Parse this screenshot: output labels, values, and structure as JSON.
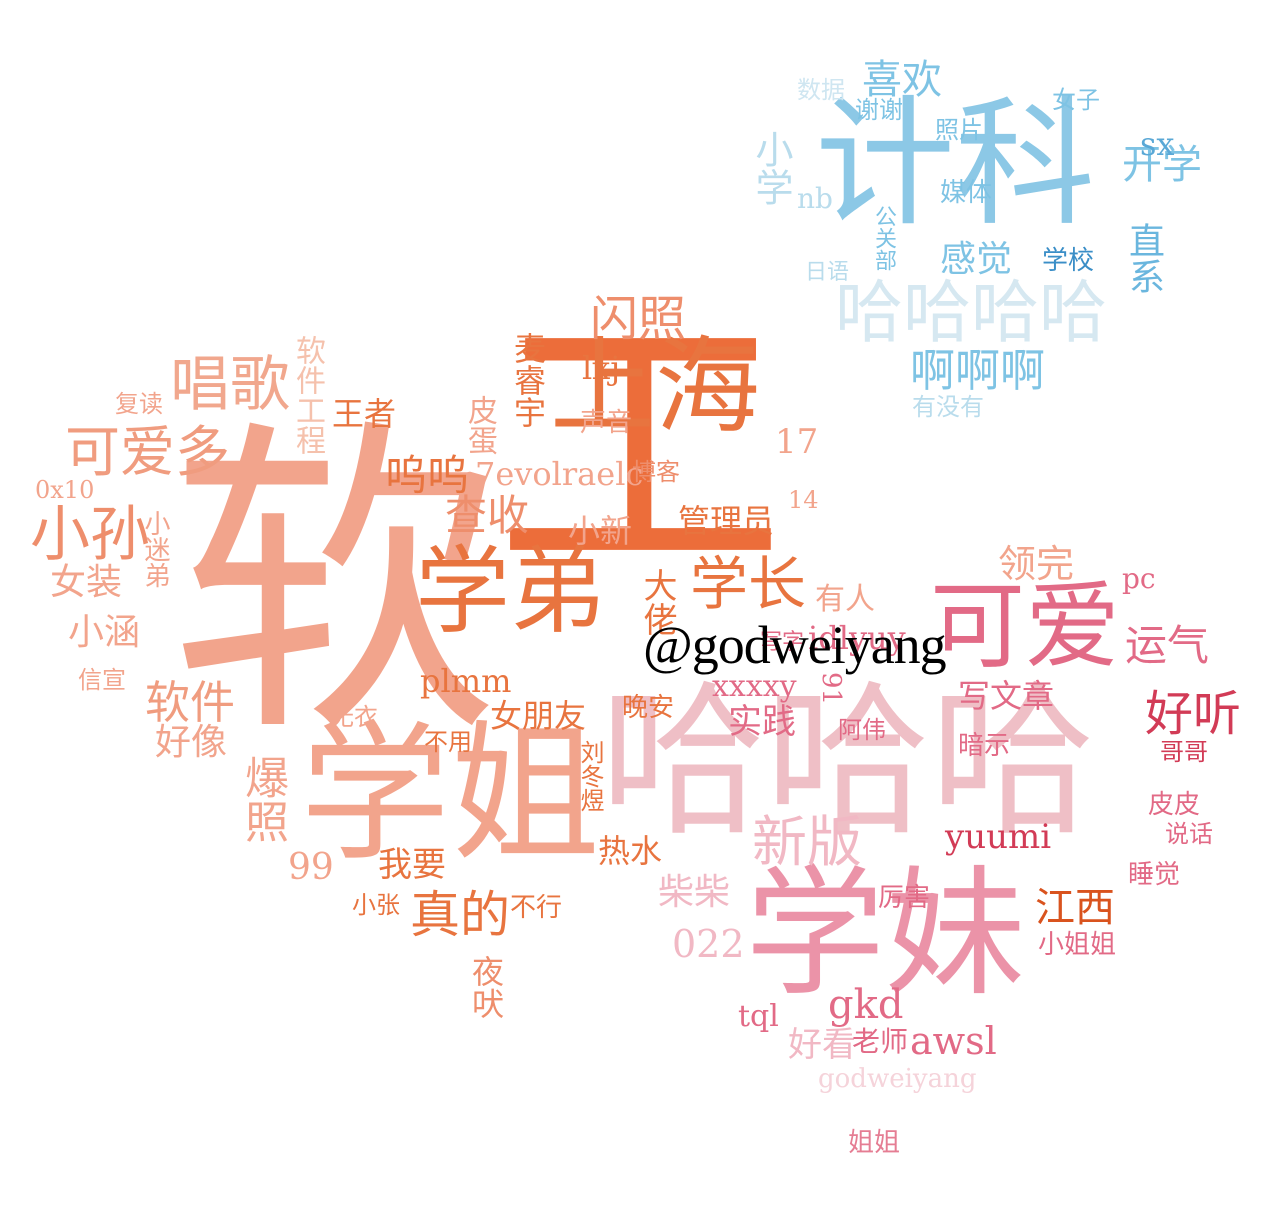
{
  "watermark": "@godweiyang",
  "colors": {
    "blue": "#7ec3e4",
    "blue_light": "#b9dcec",
    "blue_pale": "#cfe6f1",
    "peach": "#f1a78d",
    "orange": "#e8743f",
    "orange_dark": "#d9531e",
    "pink": "#e57d93",
    "pink_light": "#efbfc6",
    "crimson": "#d23b56"
  },
  "words": [
    {
      "text": "软",
      "color": "#f2a48c"
    },
    {
      "text": "工",
      "color": "#ec6d3a"
    },
    {
      "text": "学姐",
      "color": "#f2a48c"
    },
    {
      "text": "哈哈哈",
      "color": "#efbfc6"
    },
    {
      "text": "学妹",
      "color": "#eb93a8"
    },
    {
      "text": "计科",
      "color": "#8cc8e6"
    },
    {
      "text": "上海",
      "color": "#e8743f"
    },
    {
      "text": "学弟",
      "color": "#e8743f"
    },
    {
      "text": "可爱",
      "color": "#e26a86"
    },
    {
      "text": "哈哈哈哈",
      "color": "#d6e8f1"
    },
    {
      "text": "唱歌",
      "color": "#f1a78d"
    },
    {
      "text": "可爱多",
      "color": "#f09c7f"
    },
    {
      "text": "小孙",
      "color": "#ee8e6c"
    },
    {
      "text": "学长",
      "color": "#e8743f"
    },
    {
      "text": "闪照",
      "color": "#ee8e6c"
    },
    {
      "text": "查收",
      "color": "#ee8e6c"
    },
    {
      "text": "呜呜",
      "color": "#e8743f"
    },
    {
      "text": "软件",
      "color": "#f09c7f"
    },
    {
      "text": "新版",
      "color": "#f1b8c4"
    },
    {
      "text": "真的",
      "color": "#e8743f"
    },
    {
      "text": "好听",
      "color": "#d23b56"
    },
    {
      "text": "运气",
      "color": "#e26a86"
    },
    {
      "text": "江西",
      "color": "#d9531e"
    },
    {
      "text": "领完",
      "color": "#f2a48c"
    },
    {
      "text": "喜欢",
      "color": "#7ec3e4"
    },
    {
      "text": "啊啊啊",
      "color": "#7ec3e4"
    },
    {
      "text": "开学",
      "color": "#7ec3e4"
    },
    {
      "text": "感觉",
      "color": "#7ec3e4"
    },
    {
      "text": "小学",
      "color": "#b9dcec"
    },
    {
      "text": "直系",
      "color": "#6ab6de"
    },
    {
      "text": "sx",
      "color": "#5aa8d6"
    },
    {
      "text": "nb",
      "color": "#b9dcec"
    },
    {
      "text": "数据",
      "color": "#cfe6f1"
    },
    {
      "text": "谢谢",
      "color": "#7ec3e4"
    },
    {
      "text": "照片",
      "color": "#7ec3e4"
    },
    {
      "text": "女子",
      "color": "#7ec3e4"
    },
    {
      "text": "媒体",
      "color": "#7ec3e4"
    },
    {
      "text": "公关部",
      "color": "#7ec3e4"
    },
    {
      "text": "日语",
      "color": "#b9dcec"
    },
    {
      "text": "学校",
      "color": "#3a8ec7"
    },
    {
      "text": "有没有",
      "color": "#b9dcec"
    },
    {
      "text": "软件工程",
      "color": "#f5c1ac"
    },
    {
      "text": "复读",
      "color": "#f2a48c"
    },
    {
      "text": "王者",
      "color": "#e8743f"
    },
    {
      "text": "皮蛋",
      "color": "#f2a48c"
    },
    {
      "text": "麦睿宇",
      "color": "#e8743f"
    },
    {
      "text": "lxj",
      "color": "#e8743f"
    },
    {
      "text": "声音",
      "color": "#f2a48c"
    },
    {
      "text": "17",
      "color": "#f2a48c"
    },
    {
      "text": "0x10",
      "color": "#f2a48c"
    },
    {
      "text": "7evolraelc",
      "color": "#f2a48c"
    },
    {
      "text": "博客",
      "color": "#ee8e6c"
    },
    {
      "text": "14",
      "color": "#f2a48c"
    },
    {
      "text": "管理员",
      "color": "#e8743f"
    },
    {
      "text": "小迷弟",
      "color": "#f2a48c"
    },
    {
      "text": "女装",
      "color": "#f2a48c"
    },
    {
      "text": "小新",
      "color": "#f2a48c"
    },
    {
      "text": "大佬",
      "color": "#e8743f"
    },
    {
      "text": "小涵",
      "color": "#f2a48c"
    },
    {
      "text": "有人",
      "color": "#f2a48c"
    },
    {
      "text": "pc",
      "color": "#e26a86"
    },
    {
      "text": "idlyuy",
      "color": "#e26a86"
    },
    {
      "text": "写字",
      "color": "#e26a86"
    },
    {
      "text": "信宣",
      "color": "#f2a48c"
    },
    {
      "text": "plmm",
      "color": "#e8743f"
    },
    {
      "text": "好像",
      "color": "#f2a48c"
    },
    {
      "text": "xxxxy",
      "color": "#e26a86"
    },
    {
      "text": "91",
      "color": "#e26a86"
    },
    {
      "text": "写文章",
      "color": "#e26a86"
    },
    {
      "text": "无衣",
      "color": "#f2a48c"
    },
    {
      "text": "女朋友",
      "color": "#e8743f"
    },
    {
      "text": "晚安",
      "color": "#e8743f"
    },
    {
      "text": "实践",
      "color": "#e26a86"
    },
    {
      "text": "阿伟",
      "color": "#e26a86"
    },
    {
      "text": "不用",
      "color": "#e8743f"
    },
    {
      "text": "暗示",
      "color": "#e26a86"
    },
    {
      "text": "哥哥",
      "color": "#d23b56"
    },
    {
      "text": "爆照",
      "color": "#f2a48c"
    },
    {
      "text": "刘冬煜",
      "color": "#e8743f"
    },
    {
      "text": "yuumi",
      "color": "#d23b56"
    },
    {
      "text": "皮皮",
      "color": "#e26a86"
    },
    {
      "text": "说话",
      "color": "#e26a86"
    },
    {
      "text": "99",
      "color": "#f2a48c"
    },
    {
      "text": "我要",
      "color": "#e8743f"
    },
    {
      "text": "热水",
      "color": "#e8743f"
    },
    {
      "text": "睡觉",
      "color": "#e26a86"
    },
    {
      "text": "柴柴",
      "color": "#f1b8c4"
    },
    {
      "text": "小张",
      "color": "#e8743f"
    },
    {
      "text": "不行",
      "color": "#e8743f"
    },
    {
      "text": "厉害",
      "color": "#e26a86"
    },
    {
      "text": "022",
      "color": "#f1b8c4"
    },
    {
      "text": "小姐姐",
      "color": "#e26a86"
    },
    {
      "text": "夜吠",
      "color": "#ee8e6c"
    },
    {
      "text": "gkd",
      "color": "#e26a86"
    },
    {
      "text": "tql",
      "color": "#e26a86"
    },
    {
      "text": "好看",
      "color": "#f1b8c4"
    },
    {
      "text": "老师",
      "color": "#e26a86"
    },
    {
      "text": "awsl",
      "color": "#e26a86"
    },
    {
      "text": "godweiyang",
      "color": "#f5d3da"
    },
    {
      "text": "姐姐",
      "color": "#e57d93"
    }
  ]
}
